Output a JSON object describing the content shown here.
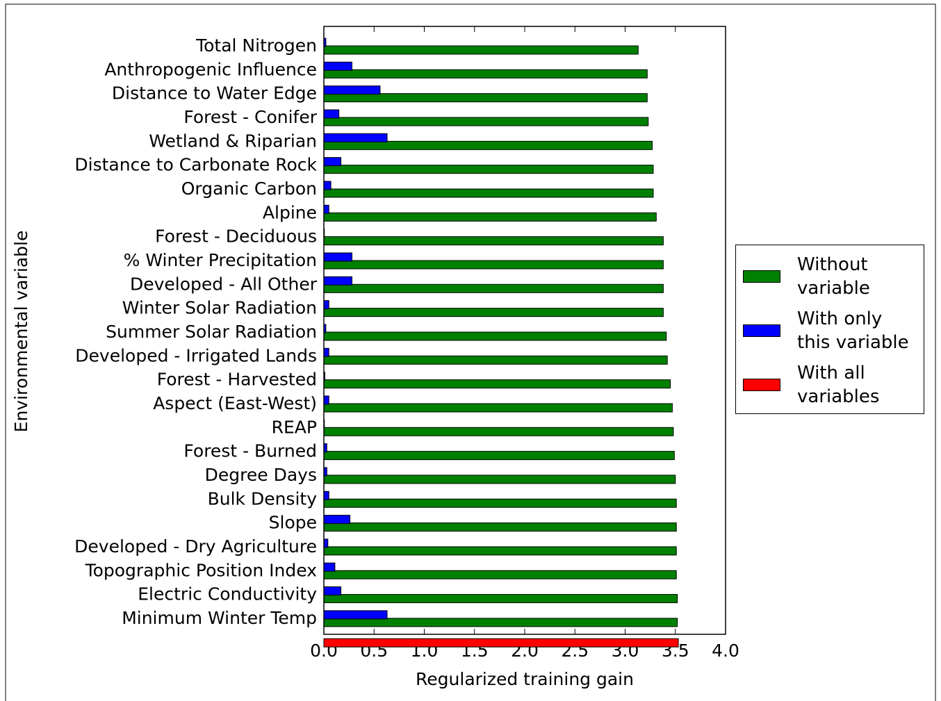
{
  "chart_data": {
    "type": "hbar",
    "xlabel": "Regularized training gain",
    "ylabel": "Environmental variable",
    "categories": [
      "Total Nitrogen",
      "Anthropogenic Influence",
      "Distance to Water Edge",
      "Forest - Conifer",
      "Wetland & Riparian",
      "Distance to Carbonate Rock",
      "Organic Carbon",
      "Alpine",
      "Forest - Deciduous",
      "% Winter Precipitation",
      "Developed - All Other",
      "Winter Solar Radiation",
      "Summer Solar Radiation",
      "Developed - Irrigated Lands",
      "Forest - Harvested",
      "Aspect (East-West)",
      "REAP",
      "Forest - Burned",
      "Degree Days",
      "Bulk Density",
      "Slope",
      "Developed - Dry Agriculture",
      "Topographic Position Index",
      "Electric Conductivity",
      "Minimum Winter Temp",
      null
    ],
    "series": [
      {
        "name": "Without variable",
        "color": "#008000",
        "values": [
          3.13,
          3.22,
          3.22,
          3.23,
          3.27,
          3.28,
          3.28,
          3.31,
          3.38,
          3.38,
          3.38,
          3.38,
          3.41,
          3.42,
          3.45,
          3.47,
          3.48,
          3.49,
          3.5,
          3.51,
          3.51,
          3.51,
          3.51,
          3.52,
          3.52,
          null
        ]
      },
      {
        "name": "With only this variable",
        "color": "#0000ff",
        "values": [
          0.02,
          0.28,
          0.56,
          0.15,
          0.63,
          0.17,
          0.07,
          0.05,
          0.005,
          0.28,
          0.28,
          0.05,
          0.02,
          0.05,
          0.01,
          0.05,
          0.005,
          0.03,
          0.03,
          0.05,
          0.26,
          0.04,
          0.11,
          0.17,
          0.63,
          null
        ]
      },
      {
        "name": "With all variables",
        "color": "#ff0000",
        "values": [
          null,
          null,
          null,
          null,
          null,
          null,
          null,
          null,
          null,
          null,
          null,
          null,
          null,
          null,
          null,
          null,
          null,
          null,
          null,
          null,
          null,
          null,
          null,
          null,
          null,
          3.53
        ]
      }
    ],
    "xlim": [
      0,
      4
    ],
    "xticks": [
      {
        "value": 0,
        "label": "0.0"
      },
      0.5,
      {
        "value": 1,
        "label": "1.0"
      },
      1.5,
      {
        "value": 2,
        "label": "2.0"
      },
      2.5,
      {
        "value": 3,
        "label": "3.0"
      },
      3.5,
      {
        "value": 4,
        "label": "4.0"
      }
    ],
    "legend": "right"
  }
}
